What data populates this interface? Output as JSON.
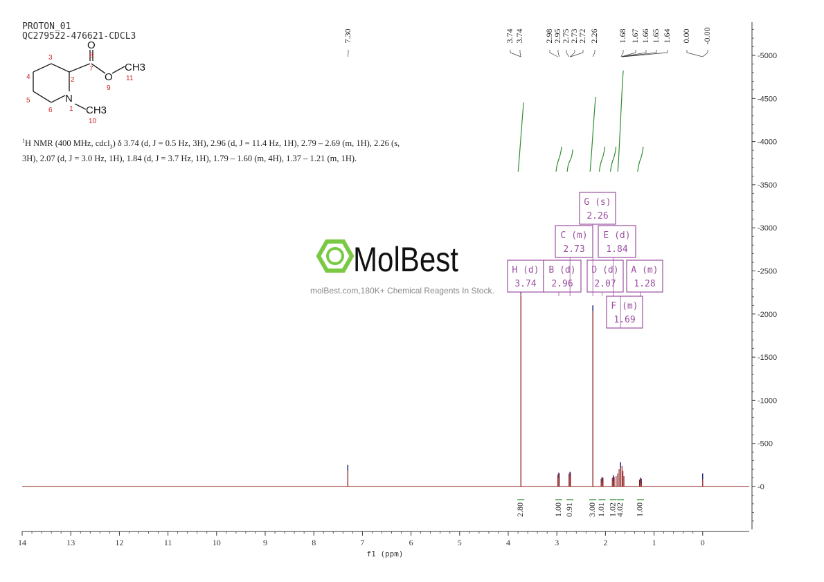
{
  "header": {
    "line1": "PROTON_01",
    "line2": "QC279522-476621-CDCL3"
  },
  "description": {
    "prefix": "H NMR (400 MHz, cdcl",
    "sup": "1",
    "sub": "3",
    "body": ") δ 3.74 (d, J = 0.5 Hz, 3H), 2.96 (d, J = 11.4 Hz, 1H), 2.79 – 2.69 (m, 1H), 2.26 (s, 3H), 2.07 (d, J = 3.0 Hz, 1H), 1.84 (d, J = 3.7 Hz, 1H), 1.79 – 1.60 (m, 4H), 1.37 – 1.21 (m, 1H)."
  },
  "molecule": {
    "atoms": [
      "O",
      "CH3",
      "N",
      "CH3"
    ],
    "numbers": [
      "1",
      "2",
      "3",
      "4",
      "5",
      "6",
      "7",
      "8",
      "9",
      "10",
      "11"
    ]
  },
  "watermark": {
    "brand": "MolBest",
    "tagline": "molBest.com,180K+ Chemical Reagents In Stock."
  },
  "chart_data": {
    "type": "line",
    "title": "",
    "xlabel": "f1 (ppm)",
    "ylabel": "",
    "xlim": [
      14,
      -1
    ],
    "ylim": [
      -500,
      5400
    ],
    "x_ticks": [
      14,
      13,
      12,
      11,
      10,
      9,
      8,
      7,
      6,
      5,
      4,
      3,
      2,
      1,
      0
    ],
    "y_ticks": [
      0,
      500,
      1000,
      1500,
      2000,
      2500,
      3000,
      3500,
      4000,
      4500,
      5000
    ],
    "peak_labels": [
      "7.30",
      "3.74",
      "3.74",
      "2.98",
      "2.95",
      "2.75",
      "2.73",
      "2.72",
      "2.26",
      "1.68",
      "1.67",
      "1.66",
      "1.65",
      "1.64",
      "0.00",
      "-0.00"
    ],
    "peaks": [
      {
        "x": 7.3,
        "y": 250
      },
      {
        "x": 3.74,
        "y": 2300
      },
      {
        "x": 2.96,
        "y": 160
      },
      {
        "x": 2.73,
        "y": 170
      },
      {
        "x": 2.26,
        "y": 2100
      },
      {
        "x": 2.07,
        "y": 110
      },
      {
        "x": 1.84,
        "y": 130
      },
      {
        "x": 1.69,
        "y": 280
      },
      {
        "x": 1.28,
        "y": 100
      },
      {
        "x": 0.0,
        "y": 150
      }
    ],
    "multiplets": [
      {
        "id": "H",
        "mult": "(d)",
        "shift": "3.74"
      },
      {
        "id": "B",
        "mult": "(d)",
        "shift": "2.96"
      },
      {
        "id": "D",
        "mult": "(d)",
        "shift": "2.07"
      },
      {
        "id": "A",
        "mult": "(m)",
        "shift": "1.28"
      },
      {
        "id": "C",
        "mult": "(m)",
        "shift": "2.73"
      },
      {
        "id": "E",
        "mult": "(d)",
        "shift": "1.84"
      },
      {
        "id": "G",
        "mult": "(s)",
        "shift": "2.26"
      },
      {
        "id": "F",
        "mult": "(m)",
        "shift": "1.69"
      }
    ],
    "integrals": [
      {
        "x": 3.74,
        "value": "2.80"
      },
      {
        "x": 2.96,
        "value": "1.00"
      },
      {
        "x": 2.73,
        "value": "0.91"
      },
      {
        "x": 2.26,
        "value": "3.00"
      },
      {
        "x": 2.07,
        "value": "1.01"
      },
      {
        "x": 1.84,
        "value": "1.02"
      },
      {
        "x": 1.69,
        "value": "4.02"
      },
      {
        "x": 1.28,
        "value": "1.00"
      }
    ],
    "colors": {
      "spectrum": "#8b1a1a",
      "integral": "#2e8b2e",
      "label": "#9b4fa0",
      "peakpick": "#1a237e",
      "axis": "#333333"
    }
  }
}
